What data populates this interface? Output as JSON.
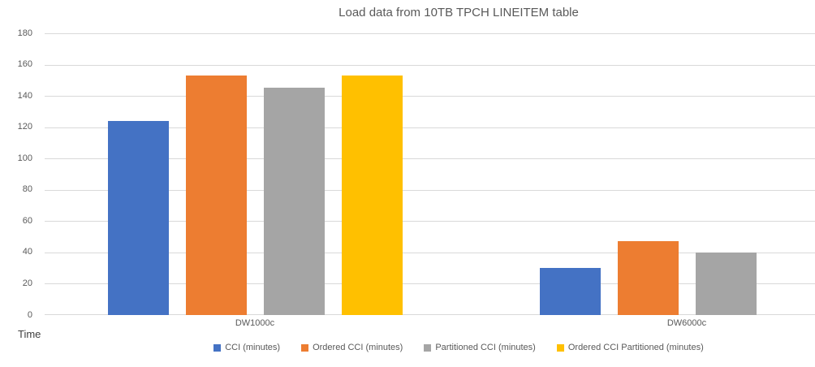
{
  "chart_data": {
    "type": "bar",
    "title": "Load data from 10TB TPCH LINEITEM table",
    "axis_title": "Time",
    "categories": [
      "DW1000c",
      "DW6000c"
    ],
    "series": [
      {
        "name": "CCI (minutes)",
        "color": "#4472C4",
        "values": [
          124,
          30
        ]
      },
      {
        "name": "Ordered CCI (minutes)",
        "color": "#ED7D31",
        "values": [
          153,
          47
        ]
      },
      {
        "name": "Partitioned CCI (minutes)",
        "color": "#A5A5A5",
        "values": [
          145,
          40
        ]
      },
      {
        "name": "Ordered CCI Partitioned (minutes)",
        "color": "#FFC000",
        "values": [
          153,
          null
        ]
      }
    ],
    "ylim": [
      0,
      180
    ],
    "yticks": [
      0,
      20,
      40,
      60,
      80,
      100,
      120,
      140,
      160,
      180
    ],
    "grid": true,
    "legend_position": "bottom",
    "colors": {
      "gridline": "#D9D9D9",
      "axis_text": "#595959",
      "title_text": "#595959",
      "background": "#FFFFFF"
    }
  }
}
